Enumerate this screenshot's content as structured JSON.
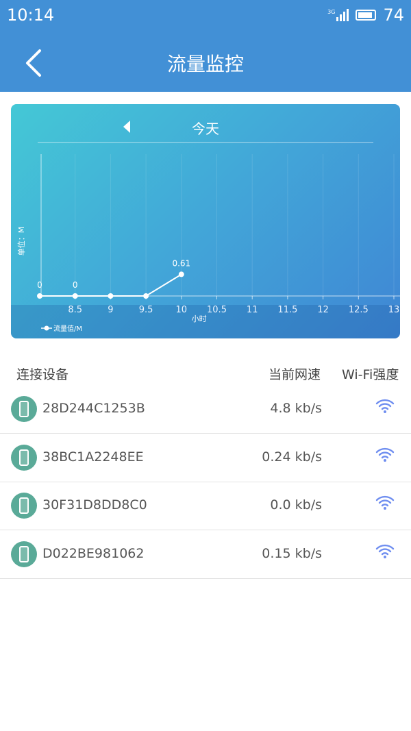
{
  "status_bar": {
    "time": "10:14",
    "network": "3G",
    "battery": "74"
  },
  "header": {
    "title": "流量监控",
    "back_icon": "chevron-left-icon"
  },
  "chart_data": {
    "type": "line",
    "title": "今天",
    "xlabel": "小时",
    "ylabel": "单位：M",
    "x": [
      8,
      8.5,
      9,
      9.5,
      10
    ],
    "series": [
      {
        "name": "流量值/M",
        "values": [
          0,
          0,
          0,
          0,
          0.61
        ]
      }
    ],
    "data_labels": [
      "0",
      "0",
      "",
      "",
      "0.61"
    ],
    "x_ticks": [
      "8.5",
      "9",
      "9.5",
      "10",
      "10.5",
      "11",
      "11.5",
      "12",
      "12.5",
      "13"
    ],
    "xlim": [
      8,
      13
    ],
    "ylim": [
      0,
      4
    ],
    "grid": "vertical",
    "legend": "bottom-left",
    "colors": {
      "line": "#ffffff",
      "bg_start": "#44c8d6",
      "bg_end": "#3f86d4"
    }
  },
  "table": {
    "headers": [
      "连接设备",
      "当前网速",
      "Wi-Fi强度"
    ],
    "rows": [
      {
        "device": "28D244C1253B",
        "speed": "4.8 kb/s"
      },
      {
        "device": "38BC1A2248EE",
        "speed": "0.24 kb/s"
      },
      {
        "device": "30F31D8DD8C0",
        "speed": "0.0 kb/s"
      },
      {
        "device": "D022BE981062",
        "speed": "0.15 kb/s"
      }
    ],
    "device_icon": "phone-icon",
    "signal_icon": "wifi-icon",
    "accent": "#6f8ef0"
  }
}
